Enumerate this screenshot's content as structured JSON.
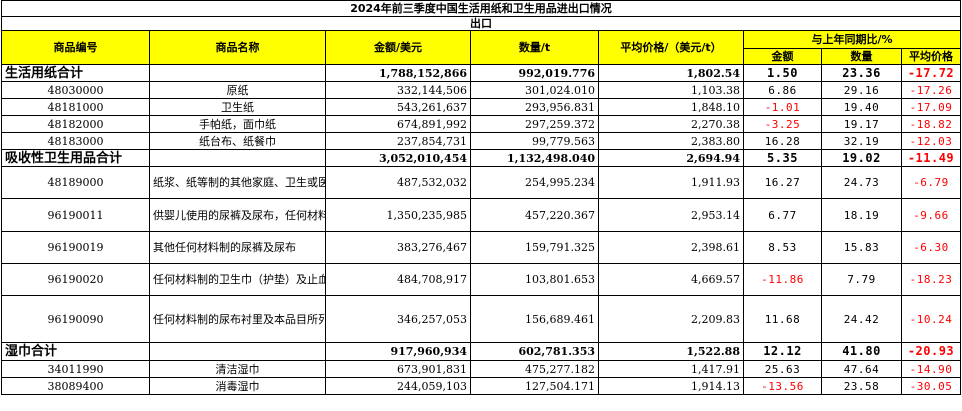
{
  "title": "2024年前三季度中国生活用纸和卫生用品进出口情况",
  "subtitle": "出口",
  "headers": {
    "code": "商品编号",
    "name": "商品名称",
    "amount": "金额/美元",
    "quantity": "数量/t",
    "avg_price": "平均价格/（美元/t）",
    "yoy": "与上年同期比/%",
    "yoy_amount": "金额",
    "yoy_quantity": "数量",
    "yoy_price": "平均价格"
  },
  "rows": [
    {
      "code": "生活用纸合计",
      "name": "",
      "amount": "1,788,152,866",
      "quantity": "992,019.776",
      "avg_price": "1,802.54",
      "yoy_amount": "1.50",
      "yoy_quantity": "23.36",
      "yoy_price": "-17.72",
      "total": true
    },
    {
      "code": "48030000",
      "name": "原纸",
      "amount": "332,144,506",
      "quantity": "301,024.010",
      "avg_price": "1,103.38",
      "yoy_amount": "6.86",
      "yoy_quantity": "29.16",
      "yoy_price": "-17.26"
    },
    {
      "code": "48181000",
      "name": "卫生纸",
      "amount": "543,261,637",
      "quantity": "293,956.831",
      "avg_price": "1,848.10",
      "yoy_amount": "-1.01",
      "yoy_quantity": "19.40",
      "yoy_price": "-17.09"
    },
    {
      "code": "48182000",
      "name": "手帕纸，面巾纸",
      "amount": "674,891,992",
      "quantity": "297,259.372",
      "avg_price": "2,270.38",
      "yoy_amount": "-3.25",
      "yoy_quantity": "19.17",
      "yoy_price": "-18.82"
    },
    {
      "code": "48183000",
      "name": "纸台布、纸餐巾",
      "amount": "237,854,731",
      "quantity": "99,779.563",
      "avg_price": "2,383.80",
      "yoy_amount": "16.28",
      "yoy_quantity": "32.19",
      "yoy_price": "-12.03"
    },
    {
      "code": "吸收性卫生用品合计",
      "name": "",
      "amount": "3,052,010,454",
      "quantity": "1,132,498.040",
      "avg_price": "2,694.94",
      "yoy_amount": "5.35",
      "yoy_quantity": "19.02",
      "yoy_price": "-11.49",
      "total": true
    },
    {
      "code": "48189000",
      "name": "纸浆、纸等制的其他家庭、卫生或医院用品",
      "amount": "487,532,032",
      "quantity": "254,995.234",
      "avg_price": "1,911.93",
      "yoy_amount": "16.27",
      "yoy_quantity": "24.73",
      "yoy_price": "-6.79"
    },
    {
      "code": "96190011",
      "name": "供婴儿使用的尿裤及尿布，任何材料制",
      "amount": "1,350,235,985",
      "quantity": "457,220.367",
      "avg_price": "2,953.14",
      "yoy_amount": "6.77",
      "yoy_quantity": "18.19",
      "yoy_price": "-9.66"
    },
    {
      "code": "96190019",
      "name": "其他任何材料制的尿裤及尿布",
      "amount": "383,276,467",
      "quantity": "159,791.325",
      "avg_price": "2,398.61",
      "yoy_amount": "8.53",
      "yoy_quantity": "15.83",
      "yoy_price": "-6.30"
    },
    {
      "code": "96190020",
      "name": "任何材料制的卫生巾（护垫）及止血塞",
      "amount": "484,708,917",
      "quantity": "103,801.653",
      "avg_price": "4,669.57",
      "yoy_amount": "-11.86",
      "yoy_quantity": "7.79",
      "yoy_price": "-18.23"
    },
    {
      "code": "96190090",
      "name": "任何材料制的尿布衬里及本品目所列货品的类似品",
      "amount": "346,257,053",
      "quantity": "156,689.461",
      "avg_price": "2,209.83",
      "yoy_amount": "11.68",
      "yoy_quantity": "24.42",
      "yoy_price": "-10.24"
    },
    {
      "code": "湿巾合计",
      "name": "",
      "amount": "917,960,934",
      "quantity": "602,781.353",
      "avg_price": "1,522.88",
      "yoy_amount": "12.12",
      "yoy_quantity": "41.80",
      "yoy_price": "-20.93",
      "total": true
    },
    {
      "code": "34011990",
      "name": "清洁湿巾",
      "amount": "673,901,831",
      "quantity": "475,277.182",
      "avg_price": "1,417.91",
      "yoy_amount": "25.63",
      "yoy_quantity": "47.64",
      "yoy_price": "-14.90"
    },
    {
      "code": "38089400",
      "name": "消毒湿巾",
      "amount": "244,059,103",
      "quantity": "127,504.171",
      "avg_price": "1,914.13",
      "yoy_amount": "-13.56",
      "yoy_quantity": "23.58",
      "yoy_price": "-30.05"
    }
  ]
}
